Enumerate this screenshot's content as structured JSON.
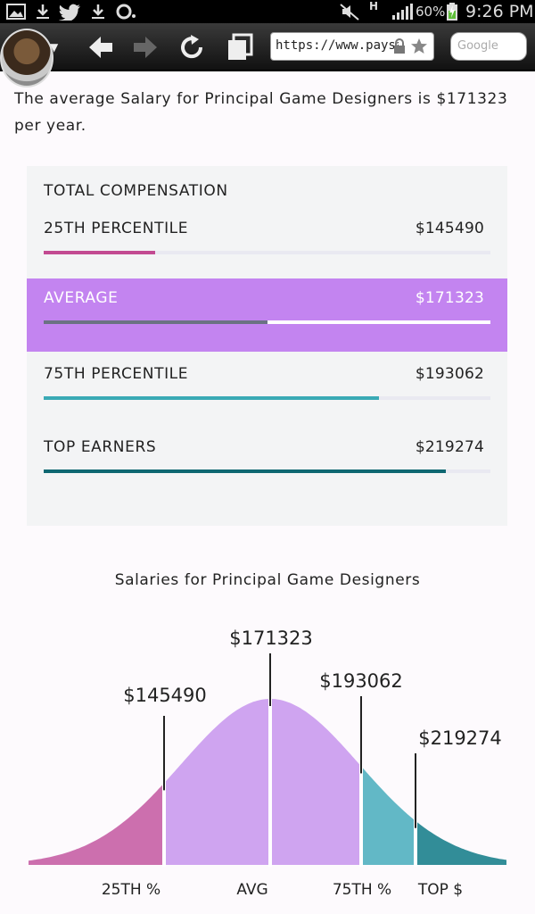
{
  "status_bar": {
    "battery": "60%",
    "time": "9:26 PM",
    "network": "H",
    "icons": [
      "gallery-icon",
      "download-icon",
      "twitter-icon",
      "download-icon",
      "circle-notification-icon",
      "mute-icon",
      "signal-icon",
      "battery-icon"
    ]
  },
  "browser": {
    "url": "https://www.paysa.com",
    "search_placeholder": "Google",
    "icons": [
      "back-icon",
      "forward-icon",
      "reload-icon",
      "tabs-icon",
      "lock-icon",
      "star-icon"
    ]
  },
  "intro": "The average Salary for Principal Game Designers is $171323 per year.",
  "compensation": {
    "title": "TOTAL COMPENSATION",
    "rows": [
      {
        "label": "25TH PERCENTILE",
        "value": "$145490",
        "fill": 0.25,
        "color": "#c24a91"
      },
      {
        "label": "AVERAGE",
        "value": "$171323",
        "fill": 0.5,
        "color": "#6b7283"
      },
      {
        "label": "75TH PERCENTILE",
        "value": "$193062",
        "fill": 0.75,
        "color": "#3aaab5"
      },
      {
        "label": "TOP EARNERS",
        "value": "$219274",
        "fill": 0.9,
        "color": "#0e6771"
      }
    ]
  },
  "chart_data": {
    "type": "area",
    "title": "Salaries for Principal Game Designers",
    "markers": [
      {
        "label": "$145490",
        "axis_label": "25TH %"
      },
      {
        "label": "$171323",
        "axis_label": "AVG"
      },
      {
        "label": "$193062",
        "axis_label": "75TH %"
      },
      {
        "label": "$219274",
        "axis_label": "TOP $"
      }
    ],
    "colors": {
      "low": "#cc6fae",
      "mid": "#cfa4f0",
      "high": "#62b8c6",
      "top": "#328d98"
    }
  }
}
